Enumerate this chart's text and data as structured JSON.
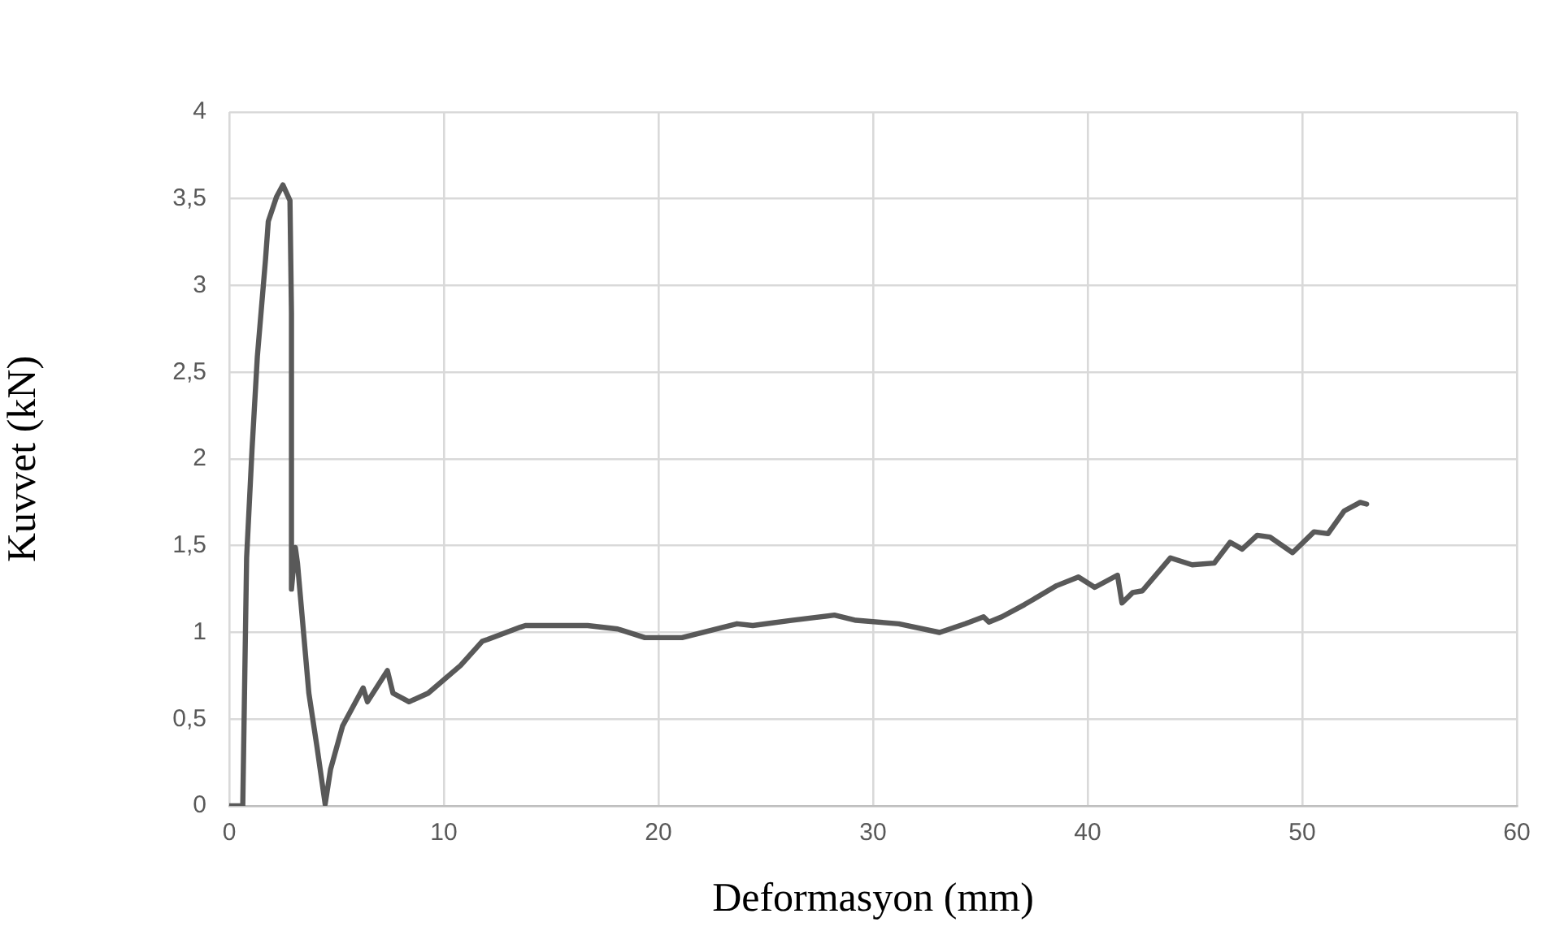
{
  "chart_data": {
    "type": "line",
    "xlabel": "Deformasyon (mm)",
    "ylabel": "Kuvvet (kN)",
    "x": [
      0,
      0.63,
      0.81,
      1.06,
      1.31,
      1.69,
      1.82,
      2.2,
      2.5,
      2.83,
      2.9,
      2.9,
      3.08,
      3.18,
      3.71,
      4.09,
      4.47,
      4.72,
      5.28,
      6.24,
      6.44,
      7.37,
      7.63,
      8.38,
      9.27,
      10.78,
      11.8,
      12.05,
      13.56,
      13.8,
      16.7,
      18.1,
      19.37,
      21.1,
      23.66,
      24.4,
      26.2,
      28.2,
      29.2,
      31.2,
      33.1,
      34.3,
      35.15,
      35.4,
      36.0,
      37.05,
      38.56,
      39.57,
      40.33,
      41.39,
      41.6,
      42.1,
      42.55,
      43.86,
      44.87,
      45.9,
      46.64,
      47.2,
      47.9,
      48.5,
      49.55,
      50.55,
      51.2,
      51.95,
      52.7,
      53.0
    ],
    "series": [
      {
        "color": "#595959",
        "values": [
          0,
          0,
          1.43,
          2.05,
          2.59,
          3.15,
          3.37,
          3.51,
          3.58,
          3.49,
          2.84,
          1.25,
          1.49,
          1.4,
          0.65,
          0.34,
          0.01,
          0.21,
          0.46,
          0.68,
          0.6,
          0.78,
          0.65,
          0.6,
          0.65,
          0.81,
          0.95,
          0.96,
          1.03,
          1.04,
          1.04,
          1.02,
          0.97,
          0.97,
          1.05,
          1.04,
          1.07,
          1.1,
          1.07,
          1.05,
          1.0,
          1.05,
          1.09,
          1.06,
          1.09,
          1.16,
          1.27,
          1.32,
          1.26,
          1.33,
          1.17,
          1.23,
          1.24,
          1.43,
          1.39,
          1.4,
          1.52,
          1.48,
          1.56,
          1.55,
          1.46,
          1.58,
          1.57,
          1.7,
          1.75,
          1.74
        ]
      }
    ],
    "xlim": [
      0,
      60
    ],
    "xticks": [
      0,
      10,
      20,
      30,
      40,
      50,
      60
    ],
    "ylim": [
      0,
      4
    ],
    "yticks": [
      0,
      {
        "value": 0.5,
        "label": "0,5"
      },
      1,
      {
        "value": 1.5,
        "label": "1,5"
      },
      2,
      {
        "value": 2.5,
        "label": "2,5"
      },
      3,
      {
        "value": 3.5,
        "label": "3,5"
      },
      4
    ],
    "grid": true,
    "marker": "none",
    "line_style": "solid",
    "legend": false
  }
}
